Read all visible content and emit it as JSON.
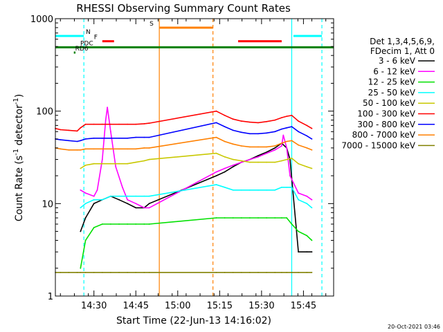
{
  "chart_data": {
    "type": "line",
    "title": "RHESSI Observing Summary Count Rates",
    "xlabel": "Start Time (22-Jun-13 14:16:02)",
    "ylabel_main": "Count Rate (s",
    "ylabel_exp1": "-1",
    "ylabel_mid": " detector",
    "ylabel_exp2": "-1",
    "ylabel_end": ")",
    "y_scale": "log",
    "ylim": [
      1,
      1000
    ],
    "xlim_minutes": [
      14.27,
      15.93
    ],
    "y_ticks": [
      1,
      10,
      100,
      1000
    ],
    "y_tick_labels": [
      "1",
      "10",
      "100",
      "1000"
    ],
    "x_ticks": [
      14.5,
      14.75,
      15.0,
      15.25,
      15.5,
      15.75
    ],
    "x_tick_labels": [
      "14:30",
      "14:45",
      "15:00",
      "15:15",
      "15:30",
      "15:45"
    ],
    "timestamp": "20-Oct-2021 03:46",
    "legend": {
      "header1": "Det 1,3,4,5,6,9,",
      "header2": "FDecim 1, Att 0",
      "entries": [
        {
          "label": "3 - 6 keV",
          "color": "#000000"
        },
        {
          "label": "6 - 12 keV",
          "color": "#ff00ff"
        },
        {
          "label": "12 - 25 keV",
          "color": "#00e000"
        },
        {
          "label": "25 - 50 keV",
          "color": "#00ffff"
        },
        {
          "label": "50 - 100 keV",
          "color": "#c8c800"
        },
        {
          "label": "100 - 300 keV",
          "color": "#ff0000"
        },
        {
          "label": "300 - 800 keV",
          "color": "#0000ff"
        },
        {
          "label": "800 - 7000 keV",
          "color": "#ff8000"
        },
        {
          "label": "7000 - 15000 keV",
          "color": "#808000"
        }
      ]
    },
    "flags": [
      {
        "label": "N",
        "color": "#00ffff",
        "segments": [
          [
            14.27,
            14.44
          ],
          [
            15.69,
            15.86
          ]
        ],
        "y": 650
      },
      {
        "label": "F",
        "color": "#ff0000",
        "segments": [
          [
            14.55,
            14.62
          ],
          [
            15.36,
            15.62
          ]
        ],
        "y": 570
      },
      {
        "label": "S",
        "color": "#ff8000",
        "segments": [
          [
            14.89,
            15.21
          ]
        ],
        "y": 800
      },
      {
        "label": "PDC",
        "color": "#008000",
        "segments": [
          [
            14.27,
            15.93
          ]
        ],
        "y": 490
      },
      {
        "label": "RD6",
        "color": "#008000",
        "segments": [
          [
            14.38,
            14.39
          ]
        ],
        "y": 430
      }
    ],
    "vlines": [
      {
        "x": 14.44,
        "color": "#00ffff",
        "style": "dashed"
      },
      {
        "x": 14.89,
        "color": "#ff8000",
        "style": "solid"
      },
      {
        "x": 15.21,
        "color": "#ff8000",
        "style": "dashed"
      },
      {
        "x": 15.68,
        "color": "#00ffff",
        "style": "solid"
      },
      {
        "x": 15.86,
        "color": "#00ffff",
        "style": "dashed"
      }
    ],
    "series": [
      {
        "name": "3 - 6 keV",
        "color": "#000000",
        "x": [
          14.42,
          14.45,
          14.5,
          14.55,
          14.6,
          14.65,
          14.7,
          14.75,
          14.8,
          14.83,
          15.23,
          15.28,
          15.33,
          15.38,
          15.43,
          15.48,
          15.53,
          15.58,
          15.62,
          15.65,
          15.67,
          15.72,
          15.77,
          15.8
        ],
        "y": [
          5,
          7,
          10,
          11,
          12,
          11,
          10,
          9,
          9,
          10,
          20,
          22,
          25,
          28,
          30,
          33,
          36,
          40,
          45,
          40,
          30,
          3,
          3,
          3
        ]
      },
      {
        "name": "6 - 12 keV",
        "color": "#ff00ff",
        "x": [
          14.42,
          14.45,
          14.5,
          14.52,
          14.55,
          14.57,
          14.58,
          14.6,
          14.63,
          14.67,
          14.7,
          14.75,
          14.8,
          14.83,
          15.23,
          15.28,
          15.33,
          15.38,
          15.43,
          15.48,
          15.53,
          15.58,
          15.62,
          15.63,
          15.65,
          15.67,
          15.72,
          15.77,
          15.8
        ],
        "y": [
          14,
          13,
          12,
          14,
          30,
          80,
          110,
          60,
          25,
          15,
          11,
          10,
          9,
          9,
          22,
          24,
          26,
          28,
          30,
          32,
          35,
          38,
          42,
          55,
          40,
          20,
          13,
          12,
          11
        ]
      },
      {
        "name": "12 - 25 keV",
        "color": "#00e000",
        "x": [
          14.42,
          14.45,
          14.5,
          14.55,
          14.6,
          14.65,
          14.7,
          14.75,
          14.8,
          14.83,
          15.23,
          15.28,
          15.33,
          15.38,
          15.43,
          15.48,
          15.53,
          15.58,
          15.62,
          15.65,
          15.68,
          15.72,
          15.77,
          15.8
        ],
        "y": [
          2,
          4,
          5.5,
          6,
          6,
          6,
          6,
          6,
          6,
          6,
          7,
          7,
          7,
          7,
          7,
          7,
          7,
          7,
          7,
          7,
          6,
          5,
          4.5,
          4
        ]
      },
      {
        "name": "25 - 50 keV",
        "color": "#00ffff",
        "x": [
          14.42,
          14.45,
          14.5,
          14.55,
          14.6,
          14.65,
          14.7,
          14.75,
          14.8,
          14.83,
          15.23,
          15.28,
          15.33,
          15.38,
          15.43,
          15.48,
          15.53,
          15.58,
          15.62,
          15.65,
          15.68,
          15.72,
          15.77,
          15.8
        ],
        "y": [
          9,
          10,
          11,
          11,
          12,
          12,
          12,
          12,
          12,
          12,
          16,
          15,
          14,
          14,
          14,
          14,
          14,
          14,
          15,
          15,
          15,
          11,
          10,
          9
        ]
      },
      {
        "name": "50 - 100 keV",
        "color": "#c8c800",
        "x": [
          14.42,
          14.45,
          14.5,
          14.55,
          14.6,
          14.65,
          14.7,
          14.75,
          14.8,
          14.83,
          15.23,
          15.28,
          15.33,
          15.38,
          15.43,
          15.48,
          15.53,
          15.58,
          15.62,
          15.65,
          15.68,
          15.72,
          15.77,
          15.8
        ],
        "y": [
          24,
          26,
          27,
          27,
          27,
          27,
          27,
          28,
          29,
          30,
          35,
          32,
          30,
          29,
          28,
          28,
          28,
          28,
          29,
          30,
          31,
          27,
          25,
          24
        ]
      },
      {
        "name": "100 - 300 keV",
        "color": "#ff0000",
        "x": [
          14.27,
          14.3,
          14.35,
          14.4,
          14.42,
          14.45,
          14.5,
          14.55,
          14.6,
          14.65,
          14.7,
          14.75,
          14.8,
          14.83,
          15.23,
          15.28,
          15.33,
          15.38,
          15.43,
          15.48,
          15.53,
          15.58,
          15.62,
          15.65,
          15.68,
          15.72,
          15.77,
          15.8
        ],
        "y": [
          65,
          63,
          62,
          61,
          66,
          72,
          72,
          72,
          72,
          72,
          72,
          72,
          73,
          74,
          100,
          90,
          82,
          78,
          76,
          75,
          77,
          80,
          85,
          88,
          90,
          78,
          70,
          65
        ]
      },
      {
        "name": "300 - 800 keV",
        "color": "#0000ff",
        "x": [
          14.27,
          14.3,
          14.35,
          14.4,
          14.42,
          14.45,
          14.5,
          14.55,
          14.6,
          14.65,
          14.7,
          14.75,
          14.8,
          14.83,
          15.23,
          15.28,
          15.33,
          15.38,
          15.43,
          15.48,
          15.53,
          15.58,
          15.62,
          15.65,
          15.68,
          15.72,
          15.77,
          15.8
        ],
        "y": [
          50,
          49,
          48,
          47,
          48,
          50,
          51,
          51,
          51,
          51,
          51,
          52,
          52,
          52,
          75,
          68,
          62,
          59,
          57,
          57,
          58,
          60,
          64,
          66,
          68,
          60,
          54,
          50
        ]
      },
      {
        "name": "800 - 7000 keV",
        "color": "#ff8000",
        "x": [
          14.27,
          14.3,
          14.35,
          14.4,
          14.42,
          14.45,
          14.5,
          14.55,
          14.6,
          14.65,
          14.7,
          14.75,
          14.8,
          14.83,
          15.23,
          15.28,
          15.33,
          15.38,
          15.43,
          15.48,
          15.53,
          15.58,
          15.62,
          15.65,
          15.68,
          15.72,
          15.77,
          15.8
        ],
        "y": [
          40,
          39,
          38,
          38,
          38,
          39,
          39,
          39,
          39,
          39,
          39,
          39,
          40,
          40,
          52,
          47,
          44,
          42,
          41,
          41,
          41,
          42,
          45,
          47,
          48,
          43,
          40,
          38
        ]
      },
      {
        "name": "7000 - 15000 keV",
        "color": "#808000",
        "x": [
          14.27,
          14.3,
          14.35,
          14.4,
          14.42,
          14.45,
          14.5,
          14.55,
          14.6,
          14.65,
          14.7,
          14.75,
          14.8,
          14.83,
          15.23,
          15.28,
          15.33,
          15.38,
          15.43,
          15.48,
          15.53,
          15.58,
          15.62,
          15.65,
          15.68,
          15.72,
          15.77,
          15.8
        ],
        "y": [
          1.8,
          1.8,
          1.8,
          1.8,
          1.8,
          1.8,
          1.8,
          1.8,
          1.8,
          1.8,
          1.8,
          1.8,
          1.8,
          1.8,
          1.8,
          1.8,
          1.8,
          1.8,
          1.8,
          1.8,
          1.8,
          1.8,
          1.8,
          1.8,
          1.8,
          1.8,
          1.8,
          1.8
        ]
      }
    ]
  }
}
